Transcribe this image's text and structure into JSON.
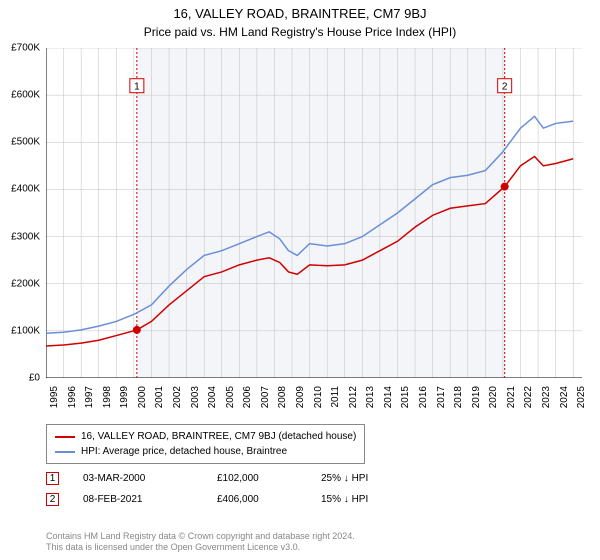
{
  "title": "16, VALLEY ROAD, BRAINTREE, CM7 9BJ",
  "subtitle": "Price paid vs. HM Land Registry's House Price Index (HPI)",
  "chart": {
    "type": "line",
    "background_color": "#ffffff",
    "plot_band_color": "#f3f5f9",
    "grid_color": "#c0c0c0",
    "axis_color": "#000000",
    "x_range": [
      1995,
      2025.5
    ],
    "y_range": [
      0,
      700000
    ],
    "y_ticks": [
      0,
      100000,
      200000,
      300000,
      400000,
      500000,
      600000,
      700000
    ],
    "y_tick_labels": [
      "£0",
      "£100K",
      "£200K",
      "£300K",
      "£400K",
      "£500K",
      "£600K",
      "£700K"
    ],
    "x_ticks": [
      1995,
      1996,
      1997,
      1998,
      1999,
      2000,
      2001,
      2002,
      2003,
      2004,
      2005,
      2006,
      2007,
      2008,
      2009,
      2010,
      2011,
      2012,
      2013,
      2014,
      2015,
      2016,
      2017,
      2018,
      2019,
      2020,
      2021,
      2022,
      2023,
      2024,
      2025
    ],
    "series": [
      {
        "name": "16, VALLEY ROAD, BRAINTREE, CM7 9BJ (detached house)",
        "color": "#d00000",
        "line_width": 1.5,
        "data": [
          [
            1995,
            68000
          ],
          [
            1996,
            70000
          ],
          [
            1997,
            74000
          ],
          [
            1998,
            80000
          ],
          [
            1999,
            90000
          ],
          [
            2000.17,
            102000
          ],
          [
            2001,
            120000
          ],
          [
            2002,
            155000
          ],
          [
            2003,
            185000
          ],
          [
            2004,
            215000
          ],
          [
            2005,
            225000
          ],
          [
            2006,
            240000
          ],
          [
            2007,
            250000
          ],
          [
            2007.7,
            255000
          ],
          [
            2008.3,
            245000
          ],
          [
            2008.8,
            225000
          ],
          [
            2009.3,
            220000
          ],
          [
            2010,
            240000
          ],
          [
            2011,
            238000
          ],
          [
            2012,
            240000
          ],
          [
            2013,
            250000
          ],
          [
            2014,
            270000
          ],
          [
            2015,
            290000
          ],
          [
            2016,
            320000
          ],
          [
            2017,
            345000
          ],
          [
            2018,
            360000
          ],
          [
            2019,
            365000
          ],
          [
            2020,
            370000
          ],
          [
            2021.1,
            406000
          ],
          [
            2022,
            450000
          ],
          [
            2022.8,
            470000
          ],
          [
            2023.3,
            450000
          ],
          [
            2024,
            455000
          ],
          [
            2025,
            465000
          ]
        ]
      },
      {
        "name": "HPI: Average price, detached house, Braintree",
        "color": "#6a8fd8",
        "line_width": 1.5,
        "data": [
          [
            1995,
            95000
          ],
          [
            1996,
            97000
          ],
          [
            1997,
            102000
          ],
          [
            1998,
            110000
          ],
          [
            1999,
            120000
          ],
          [
            2000,
            135000
          ],
          [
            2001,
            155000
          ],
          [
            2002,
            195000
          ],
          [
            2003,
            230000
          ],
          [
            2004,
            260000
          ],
          [
            2005,
            270000
          ],
          [
            2006,
            285000
          ],
          [
            2007,
            300000
          ],
          [
            2007.7,
            310000
          ],
          [
            2008.3,
            295000
          ],
          [
            2008.8,
            270000
          ],
          [
            2009.3,
            260000
          ],
          [
            2010,
            285000
          ],
          [
            2011,
            280000
          ],
          [
            2012,
            285000
          ],
          [
            2013,
            300000
          ],
          [
            2014,
            325000
          ],
          [
            2015,
            350000
          ],
          [
            2016,
            380000
          ],
          [
            2017,
            410000
          ],
          [
            2018,
            425000
          ],
          [
            2019,
            430000
          ],
          [
            2020,
            440000
          ],
          [
            2021,
            480000
          ],
          [
            2022,
            530000
          ],
          [
            2022.8,
            555000
          ],
          [
            2023.3,
            530000
          ],
          [
            2024,
            540000
          ],
          [
            2025,
            545000
          ]
        ]
      }
    ],
    "vertical_lines": [
      {
        "x": 2000.17,
        "color": "#d00000",
        "dash": "2,2",
        "marker_label": "1",
        "marker_y": 620000,
        "dot_y": 102000
      },
      {
        "x": 2021.1,
        "color": "#d00000",
        "dash": "2,2",
        "marker_label": "2",
        "marker_y": 620000,
        "dot_y": 406000
      }
    ]
  },
  "legend": {
    "items": [
      {
        "color": "#d00000",
        "label": "16, VALLEY ROAD, BRAINTREE, CM7 9BJ (detached house)"
      },
      {
        "color": "#6a8fd8",
        "label": "HPI: Average price, detached house, Braintree"
      }
    ]
  },
  "sales": [
    {
      "marker": "1",
      "date": "03-MAR-2000",
      "price": "£102,000",
      "delta": "25% ↓ HPI"
    },
    {
      "marker": "2",
      "date": "08-FEB-2021",
      "price": "£406,000",
      "delta": "15% ↓ HPI"
    }
  ],
  "footer_line1": "Contains HM Land Registry data © Crown copyright and database right 2024.",
  "footer_line2": "This data is licensed under the Open Government Licence v3.0."
}
